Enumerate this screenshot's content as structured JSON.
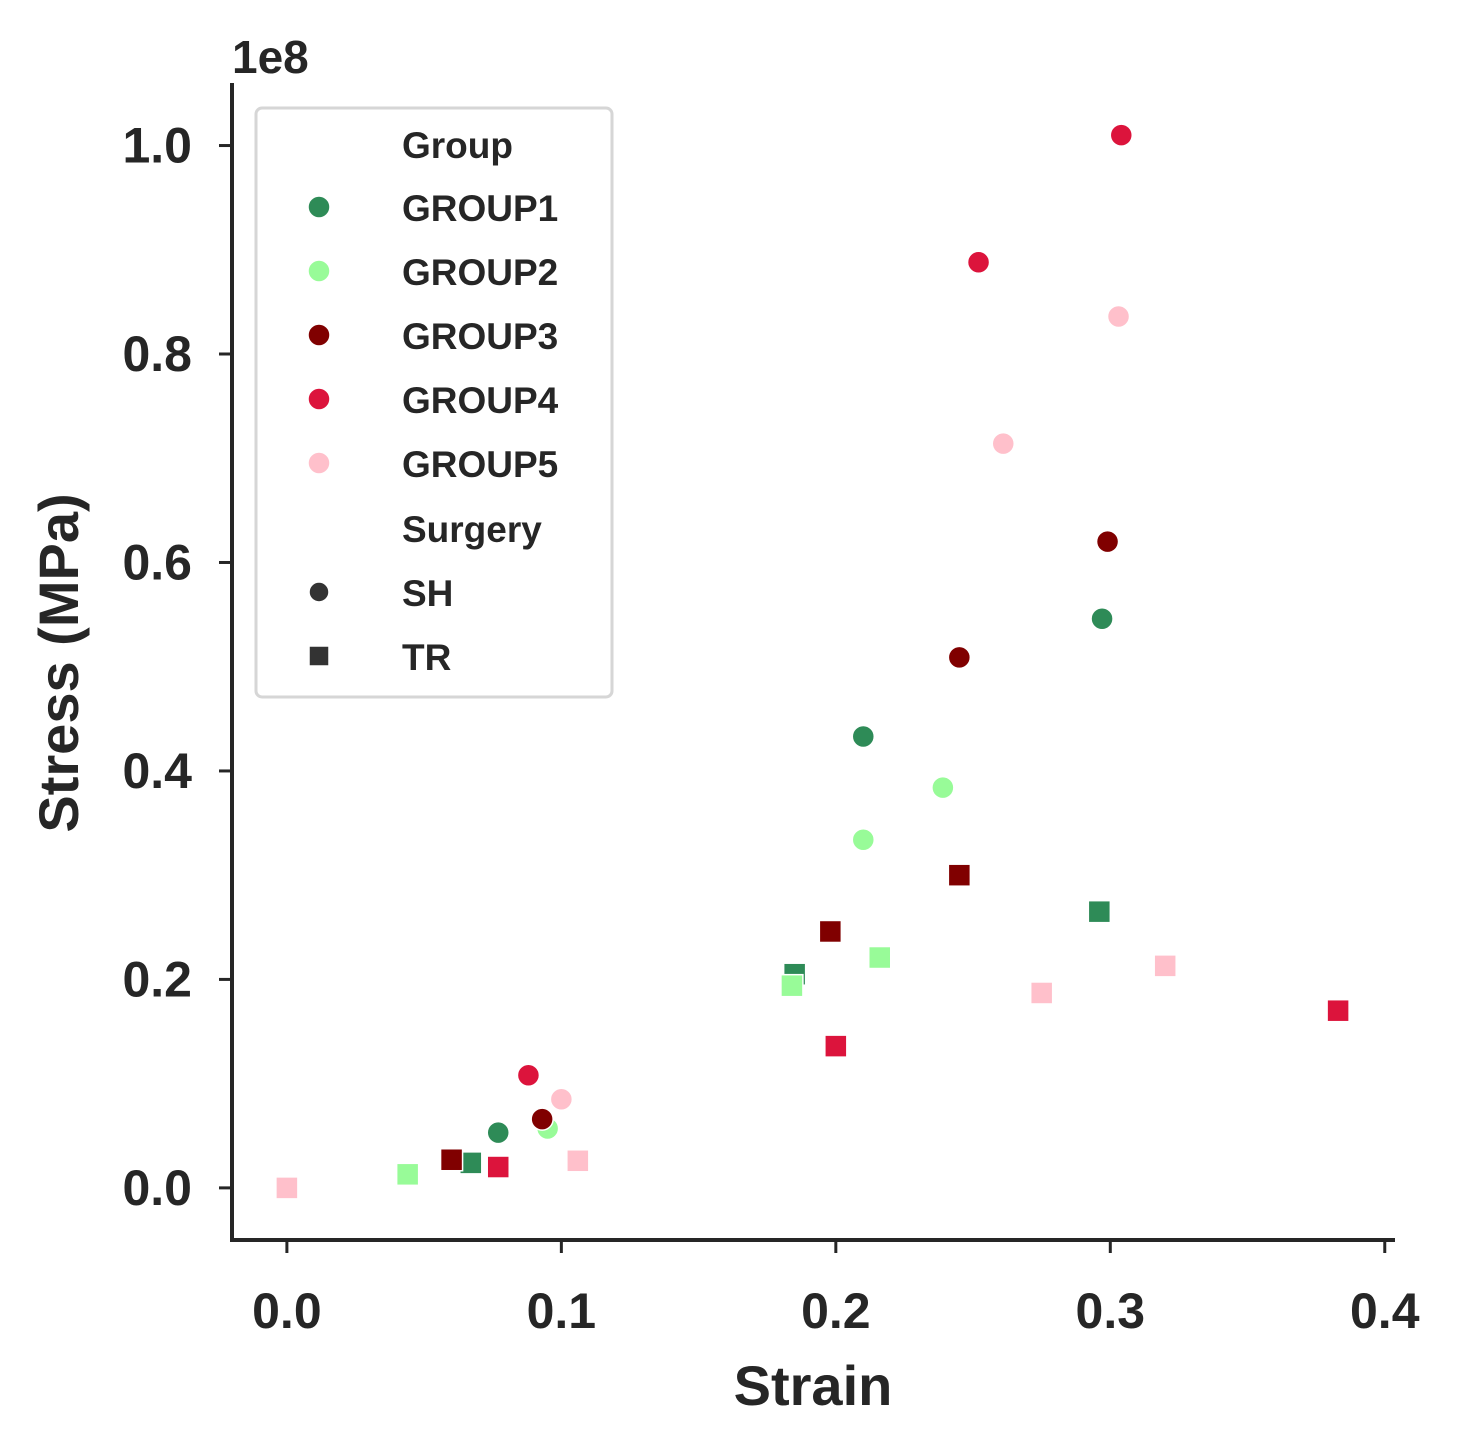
{
  "chart_data": {
    "type": "scatter",
    "xlabel": "Strain",
    "ylabel": "Stress (MPa)",
    "y_offset_label": "1e8",
    "xlim": [
      -0.02,
      0.403
    ],
    "ylim": [
      -5000000,
      106000000
    ],
    "x_ticks": [
      0.0,
      0.1,
      0.2,
      0.3,
      0.4
    ],
    "x_tick_labels": [
      "0.0",
      "0.1",
      "0.2",
      "0.3",
      "0.4"
    ],
    "y_ticks": [
      0,
      20000000,
      40000000,
      60000000,
      80000000,
      100000000
    ],
    "y_tick_labels": [
      "0.0",
      "0.2",
      "0.4",
      "0.6",
      "0.8",
      "1.0"
    ],
    "grid": false,
    "legend_position": "upper-left",
    "legend": {
      "hue_title": "Group",
      "style_title": "Surgery",
      "groups": [
        {
          "name": "GROUP1",
          "color": "#2e8b57"
        },
        {
          "name": "GROUP2",
          "color": "#98fb98"
        },
        {
          "name": "GROUP3",
          "color": "#800000"
        },
        {
          "name": "GROUP4",
          "color": "#dc143c"
        },
        {
          "name": "GROUP5",
          "color": "#ffc0cb"
        }
      ],
      "surgeries": [
        {
          "name": "SH",
          "marker": "circle"
        },
        {
          "name": "TR",
          "marker": "square"
        }
      ]
    },
    "points": [
      {
        "group": "GROUP1",
        "surgery": "TR",
        "x": 0.067,
        "y": 2400000
      },
      {
        "group": "GROUP1",
        "surgery": "TR",
        "x": 0.185,
        "y": 20500000
      },
      {
        "group": "GROUP1",
        "surgery": "TR",
        "x": 0.296,
        "y": 26500000
      },
      {
        "group": "GROUP2",
        "surgery": "TR",
        "x": 0.044,
        "y": 1300000
      },
      {
        "group": "GROUP2",
        "surgery": "TR",
        "x": 0.184,
        "y": 19400000
      },
      {
        "group": "GROUP2",
        "surgery": "TR",
        "x": 0.216,
        "y": 22100000
      },
      {
        "group": "GROUP3",
        "surgery": "TR",
        "x": 0.06,
        "y": 2700000
      },
      {
        "group": "GROUP3",
        "surgery": "TR",
        "x": 0.198,
        "y": 24600000
      },
      {
        "group": "GROUP3",
        "surgery": "TR",
        "x": 0.245,
        "y": 30000000
      },
      {
        "group": "GROUP4",
        "surgery": "TR",
        "x": 0.077,
        "y": 2000000
      },
      {
        "group": "GROUP4",
        "surgery": "TR",
        "x": 0.2,
        "y": 13600000
      },
      {
        "group": "GROUP4",
        "surgery": "TR",
        "x": 0.383,
        "y": 17000000
      },
      {
        "group": "GROUP5",
        "surgery": "TR",
        "x": 0.0,
        "y": 0
      },
      {
        "group": "GROUP5",
        "surgery": "TR",
        "x": 0.106,
        "y": 2600000
      },
      {
        "group": "GROUP5",
        "surgery": "TR",
        "x": 0.275,
        "y": 18700000
      },
      {
        "group": "GROUP5",
        "surgery": "TR",
        "x": 0.32,
        "y": 21300000
      },
      {
        "group": "GROUP1",
        "surgery": "SH",
        "x": 0.077,
        "y": 5300000
      },
      {
        "group": "GROUP1",
        "surgery": "SH",
        "x": 0.21,
        "y": 43300000
      },
      {
        "group": "GROUP1",
        "surgery": "SH",
        "x": 0.297,
        "y": 54600000
      },
      {
        "group": "GROUP2",
        "surgery": "SH",
        "x": 0.095,
        "y": 5700000
      },
      {
        "group": "GROUP2",
        "surgery": "SH",
        "x": 0.21,
        "y": 33400000
      },
      {
        "group": "GROUP2",
        "surgery": "SH",
        "x": 0.239,
        "y": 38400000
      },
      {
        "group": "GROUP3",
        "surgery": "SH",
        "x": 0.093,
        "y": 6600000
      },
      {
        "group": "GROUP3",
        "surgery": "SH",
        "x": 0.245,
        "y": 50900000
      },
      {
        "group": "GROUP3",
        "surgery": "SH",
        "x": 0.299,
        "y": 62000000
      },
      {
        "group": "GROUP4",
        "surgery": "SH",
        "x": 0.088,
        "y": 10800000
      },
      {
        "group": "GROUP4",
        "surgery": "SH",
        "x": 0.252,
        "y": 88800000
      },
      {
        "group": "GROUP4",
        "surgery": "SH",
        "x": 0.304,
        "y": 101000000
      },
      {
        "group": "GROUP5",
        "surgery": "SH",
        "x": 0.1,
        "y": 8500000
      },
      {
        "group": "GROUP5",
        "surgery": "SH",
        "x": 0.261,
        "y": 71400000
      },
      {
        "group": "GROUP5",
        "surgery": "SH",
        "x": 0.303,
        "y": 83600000
      }
    ]
  }
}
